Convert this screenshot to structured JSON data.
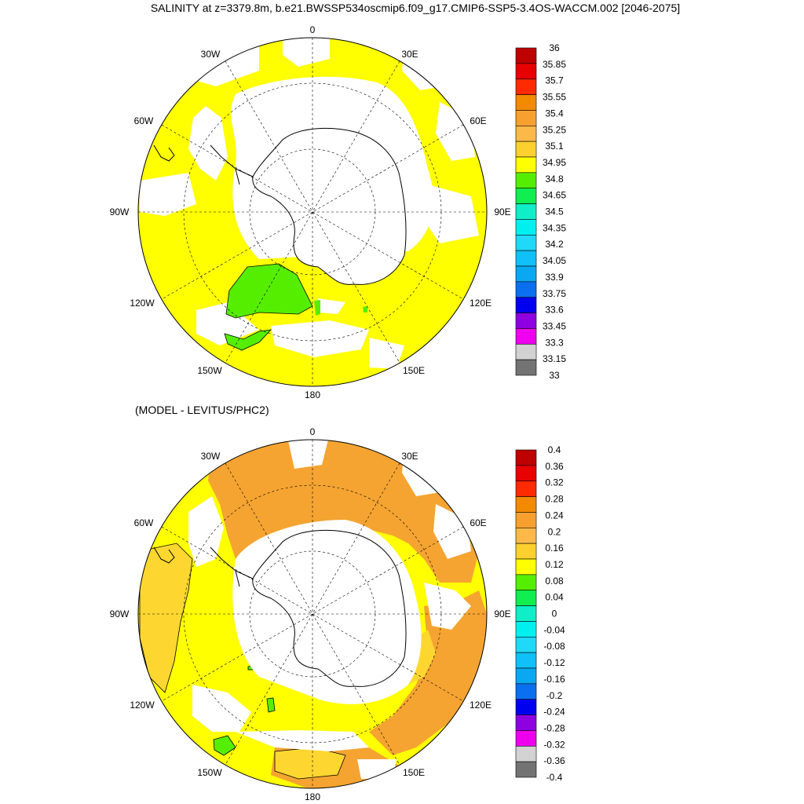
{
  "title": "SALINITY at z=3379.8m, b.e21.BWSSP534oscmip6.f09_g17.CMIP6-SSP5-3.4OS-WACCM.002 [2046-2075]",
  "subtitle": "(MODEL - LEVITUS/PHC2)",
  "longitude_labels": [
    "0",
    "30E",
    "60E",
    "90E",
    "120E",
    "150E",
    "180",
    "150W",
    "120W",
    "90W",
    "60W",
    "30W"
  ],
  "panels": [
    {
      "id": "salinity",
      "colorbar": {
        "labels": [
          "36",
          "35.85",
          "35.7",
          "35.55",
          "35.4",
          "35.25",
          "35.1",
          "34.95",
          "34.8",
          "34.65",
          "34.5",
          "34.35",
          "34.2",
          "34.05",
          "33.9",
          "33.75",
          "33.6",
          "33.45",
          "33.3",
          "33.15",
          "33"
        ],
        "colors": [
          "#bf0000",
          "#e80000",
          "#ff2a00",
          "#f28a00",
          "#f7a030",
          "#fdb84a",
          "#fdd030",
          "#ffff00",
          "#55ee00",
          "#10ee50",
          "#10eec8",
          "#00f0f0",
          "#20d8f8",
          "#10c0f8",
          "#0aa8f0",
          "#0a70f0",
          "#0000f0",
          "#8f00e0",
          "#ee00ee",
          "#d2d2d2",
          "#737373"
        ]
      },
      "field_colors": {
        "ocean": "#ffff00",
        "anomaly": "#55ee00",
        "masked": "#ffffff"
      }
    },
    {
      "id": "difference",
      "colorbar": {
        "labels": [
          "0.4",
          "0.36",
          "0.32",
          "0.28",
          "0.24",
          "0.2",
          "0.16",
          "0.12",
          "0.08",
          "0.04",
          "0",
          "-0.04",
          "-0.08",
          "-0.12",
          "-0.16",
          "-0.2",
          "-0.24",
          "-0.28",
          "-0.32",
          "-0.36",
          "-0.4"
        ],
        "colors": [
          "#bf0000",
          "#e80000",
          "#ff2a00",
          "#f28a00",
          "#f7a030",
          "#fdb84a",
          "#fdd030",
          "#ffff00",
          "#55ee00",
          "#10ee50",
          "#10eec8",
          "#00f0f0",
          "#20d8f8",
          "#10c0f8",
          "#0aa8f0",
          "#0a70f0",
          "#0000f0",
          "#8f00e0",
          "#ee00ee",
          "#d2d2d2",
          "#737373"
        ]
      },
      "field_colors": {
        "base": "#ffff00",
        "high": "#f5a431",
        "mid": "#fdd730",
        "low": "#55ee00",
        "masked": "#ffffff"
      }
    }
  ]
}
